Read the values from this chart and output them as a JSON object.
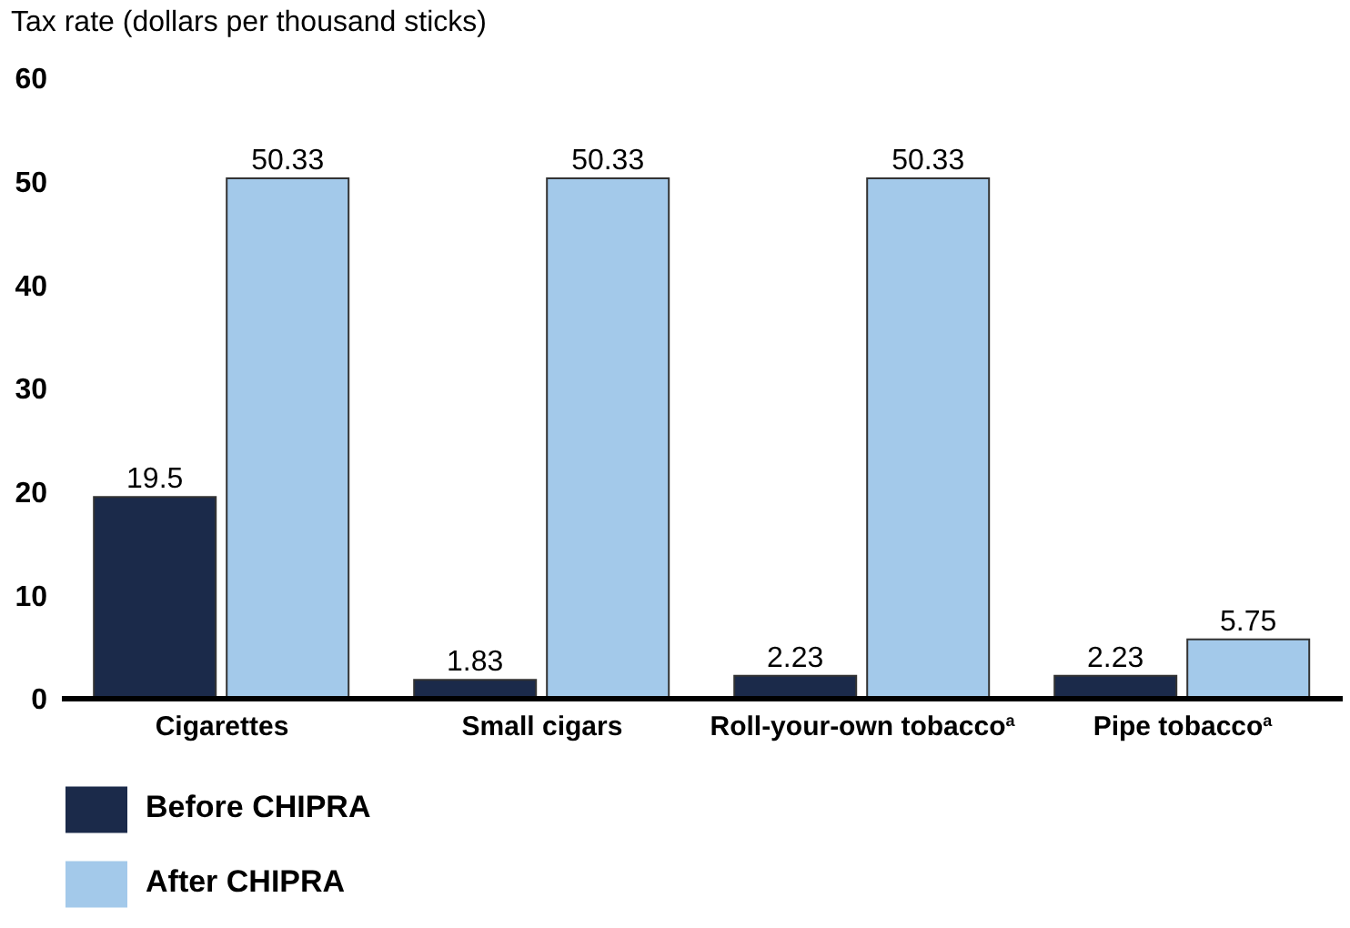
{
  "chart_data": {
    "type": "bar",
    "ylabel": "Tax rate (dollars per thousand sticks)",
    "categories": [
      "Cigarettes",
      "Small cigars",
      "Roll-your-own tobacco$^{a}$",
      "Pipe tobacco$^{a}$"
    ],
    "series": [
      {
        "name": "Before CHIPRA",
        "color": "#1b2a4a",
        "values": [
          19.5,
          1.83,
          2.23,
          2.23
        ]
      },
      {
        "name": "After CHIPRA",
        "color": "#a3c9ea",
        "values": [
          50.33,
          50.33,
          50.33,
          5.75
        ]
      }
    ],
    "ylim": [
      0,
      60
    ],
    "yticks": [
      0,
      10,
      20,
      30,
      40,
      50,
      60
    ],
    "data_labels": true,
    "grid": false,
    "legend": "bottom left"
  }
}
